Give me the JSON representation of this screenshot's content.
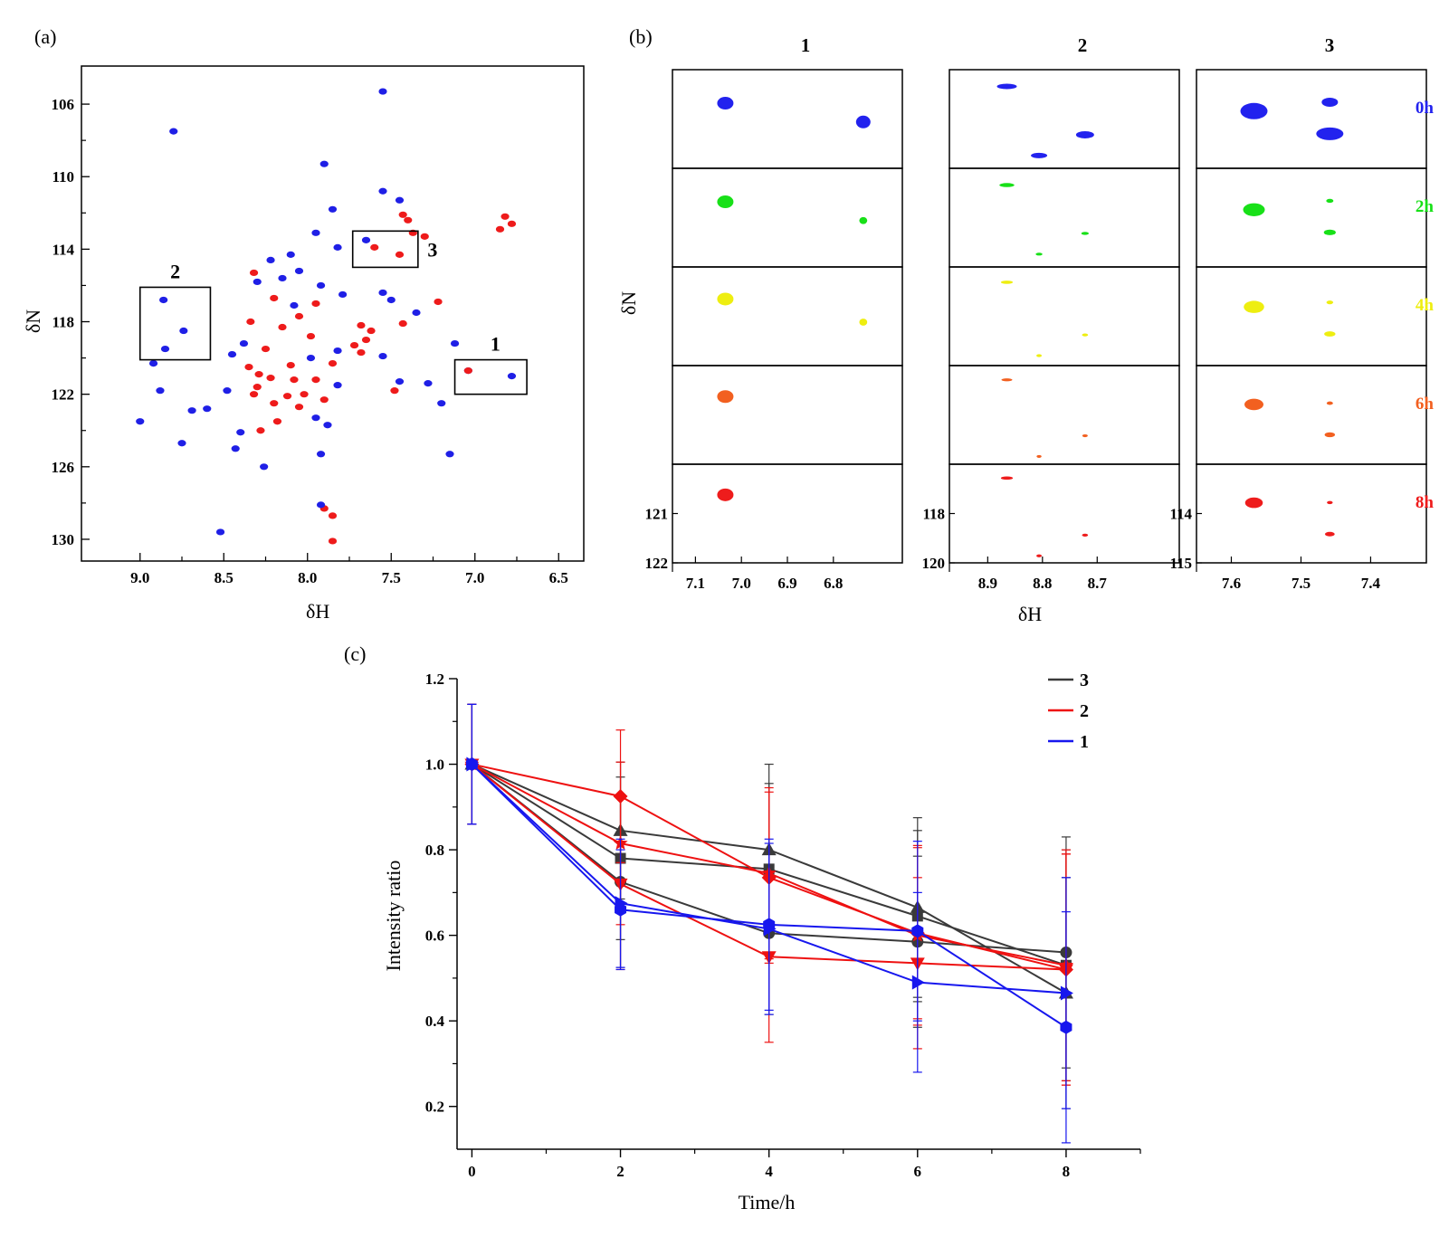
{
  "figure": {
    "panel_labels": [
      "(a)",
      "(b)",
      "(c)"
    ]
  },
  "chart_data": [
    {
      "panel": "(a)",
      "type": "scatter",
      "title": "",
      "xlabel": "δH",
      "ylabel": "δN",
      "xlim": [
        9.35,
        6.35
      ],
      "ylim": [
        131.2,
        103.9
      ],
      "x_ticks": [
        "9.0",
        "8.5",
        "8.0",
        "7.5",
        "7.0",
        "6.5"
      ],
      "y_ticks": [
        "106",
        "110",
        "114",
        "118",
        "122",
        "126",
        "130"
      ],
      "colors": {
        "blue": "#1f1fe6",
        "red": "#ee1b1b"
      },
      "regions": [
        {
          "label": "1",
          "x": [
            7.12,
            6.69
          ],
          "y": [
            120.1,
            122.0
          ]
        },
        {
          "label": "2",
          "x": [
            9.0,
            8.58
          ],
          "y": [
            116.1,
            120.1
          ]
        },
        {
          "label": "3",
          "x": [
            7.73,
            7.34
          ],
          "y": [
            113.0,
            115.0
          ]
        }
      ],
      "peaks": [
        [
          7.55,
          105.3,
          "b"
        ],
        [
          8.8,
          107.5,
          "b"
        ],
        [
          7.9,
          109.3,
          "b"
        ],
        [
          7.55,
          110.8,
          "b"
        ],
        [
          7.45,
          111.3,
          "b"
        ],
        [
          7.43,
          112.1,
          "r"
        ],
        [
          7.85,
          111.8,
          "b"
        ],
        [
          7.4,
          112.4,
          "r"
        ],
        [
          7.37,
          113.1,
          "r"
        ],
        [
          6.82,
          112.2,
          "r"
        ],
        [
          6.78,
          112.6,
          "r"
        ],
        [
          6.85,
          112.9,
          "r"
        ],
        [
          7.95,
          113.1,
          "b"
        ],
        [
          7.82,
          113.9,
          "b"
        ],
        [
          7.6,
          113.9,
          "r"
        ],
        [
          7.45,
          114.3,
          "r"
        ],
        [
          7.65,
          113.5,
          "b"
        ],
        [
          7.3,
          113.3,
          "r"
        ],
        [
          8.1,
          114.3,
          "b"
        ],
        [
          8.22,
          114.6,
          "b"
        ],
        [
          8.32,
          115.3,
          "r"
        ],
        [
          8.3,
          115.8,
          "b"
        ],
        [
          8.05,
          115.2,
          "b"
        ],
        [
          8.15,
          115.6,
          "b"
        ],
        [
          7.92,
          116.0,
          "b"
        ],
        [
          7.79,
          116.5,
          "b"
        ],
        [
          7.55,
          116.4,
          "b"
        ],
        [
          8.2,
          116.7,
          "r"
        ],
        [
          8.08,
          117.1,
          "b"
        ],
        [
          7.95,
          117.0,
          "r"
        ],
        [
          7.5,
          116.8,
          "b"
        ],
        [
          7.22,
          116.9,
          "r"
        ],
        [
          7.35,
          117.5,
          "b"
        ],
        [
          8.05,
          117.7,
          "r"
        ],
        [
          8.34,
          118.0,
          "r"
        ],
        [
          8.15,
          118.3,
          "r"
        ],
        [
          7.68,
          118.2,
          "r"
        ],
        [
          7.62,
          118.5,
          "r"
        ],
        [
          7.43,
          118.1,
          "r"
        ],
        [
          7.98,
          118.8,
          "r"
        ],
        [
          7.65,
          119.0,
          "r"
        ],
        [
          7.72,
          119.3,
          "r"
        ],
        [
          7.12,
          119.2,
          "b"
        ],
        [
          8.38,
          119.2,
          "b"
        ],
        [
          8.25,
          119.5,
          "r"
        ],
        [
          7.82,
          119.6,
          "b"
        ],
        [
          7.55,
          119.9,
          "b"
        ],
        [
          7.68,
          119.7,
          "r"
        ],
        [
          7.85,
          120.3,
          "r"
        ],
        [
          8.35,
          120.5,
          "r"
        ],
        [
          8.29,
          120.9,
          "r"
        ],
        [
          8.22,
          121.1,
          "r"
        ],
        [
          8.08,
          121.2,
          "r"
        ],
        [
          7.95,
          121.2,
          "r"
        ],
        [
          7.82,
          121.5,
          "b"
        ],
        [
          8.3,
          121.6,
          "r"
        ],
        [
          8.32,
          122.0,
          "r"
        ],
        [
          8.12,
          122.1,
          "r"
        ],
        [
          8.02,
          122.0,
          "r"
        ],
        [
          7.9,
          122.3,
          "r"
        ],
        [
          7.45,
          121.3,
          "b"
        ],
        [
          7.48,
          121.8,
          "r"
        ],
        [
          7.28,
          121.4,
          "b"
        ],
        [
          7.2,
          122.5,
          "b"
        ],
        [
          8.48,
          121.8,
          "b"
        ],
        [
          8.6,
          122.8,
          "b"
        ],
        [
          8.2,
          122.5,
          "r"
        ],
        [
          8.05,
          122.7,
          "r"
        ],
        [
          7.95,
          123.3,
          "b"
        ],
        [
          8.18,
          123.5,
          "r"
        ],
        [
          8.28,
          124.0,
          "r"
        ],
        [
          7.88,
          123.7,
          "b"
        ],
        [
          8.4,
          124.1,
          "b"
        ],
        [
          8.92,
          120.3,
          "b"
        ],
        [
          8.88,
          121.8,
          "b"
        ],
        [
          8.69,
          122.9,
          "b"
        ],
        [
          9.0,
          123.5,
          "b"
        ],
        [
          8.75,
          124.7,
          "b"
        ],
        [
          8.43,
          125.0,
          "b"
        ],
        [
          7.92,
          125.3,
          "b"
        ],
        [
          7.15,
          125.3,
          "b"
        ],
        [
          8.26,
          126.0,
          "b"
        ],
        [
          7.9,
          128.3,
          "r"
        ],
        [
          7.85,
          128.7,
          "r"
        ],
        [
          8.52,
          129.6,
          "b"
        ],
        [
          7.85,
          130.1,
          "r"
        ],
        [
          7.92,
          128.1,
          "b"
        ],
        [
          8.1,
          120.4,
          "r"
        ],
        [
          7.98,
          120.0,
          "b"
        ],
        [
          8.45,
          119.8,
          "b"
        ],
        [
          8.86,
          116.8,
          "b"
        ],
        [
          8.74,
          118.5,
          "b"
        ],
        [
          8.85,
          119.5,
          "b"
        ],
        [
          7.04,
          120.7,
          "b"
        ],
        [
          6.78,
          121.0,
          "b"
        ],
        [
          7.04,
          120.7,
          "r"
        ]
      ]
    },
    {
      "panel": "(b)",
      "type": "scatter",
      "title": "",
      "xlabel": "δH",
      "ylabel": "δN",
      "columns": [
        {
          "label": "1",
          "xlim": [
            7.15,
            6.65
          ],
          "x_ticks": [
            "7.1",
            "7.0",
            "6.9",
            "6.8"
          ],
          "ylim": [
            120.0,
            122.0
          ],
          "y_ticks": [
            "121",
            "122"
          ]
        },
        {
          "label": "2",
          "xlim": [
            8.97,
            8.55
          ],
          "x_ticks": [
            "8.9",
            "8.8",
            "8.7"
          ],
          "ylim": [
            116.0,
            120.0
          ],
          "y_ticks": [
            "118",
            "120"
          ]
        },
        {
          "label": "3",
          "xlim": [
            7.65,
            7.32
          ],
          "x_ticks": [
            "7.6",
            "7.5",
            "7.4"
          ],
          "ylim": [
            113.0,
            115.0
          ],
          "y_ticks": [
            "114",
            "115"
          ]
        }
      ],
      "timepoints": [
        {
          "label": "0h",
          "color": "#2222ee"
        },
        {
          "label": "2h",
          "color": "#18e018"
        },
        {
          "label": "4h",
          "color": "#eeee10"
        },
        {
          "label": "6h",
          "color": "#f26020"
        },
        {
          "label": "8h",
          "color": "#ee1c1c"
        }
      ]
    },
    {
      "panel": "(c)",
      "type": "line",
      "title": "",
      "xlabel": "Time/h",
      "ylabel": "Intensity ratio",
      "x": [
        0,
        2,
        4,
        6,
        8
      ],
      "xlim": [
        -0.2,
        9.0
      ],
      "ylim": [
        0.1,
        1.2
      ],
      "x_ticks": [
        "0",
        "2",
        "4",
        "6",
        "8"
      ],
      "y_ticks": [
        "0.2",
        "0.4",
        "0.6",
        "0.8",
        "1.0",
        "1.2"
      ],
      "legend": [
        {
          "name": "3",
          "color": "#3a3a3a"
        },
        {
          "name": "2",
          "color": "#ee1111"
        },
        {
          "name": "1",
          "color": "#1717ee"
        }
      ],
      "legend_position": "top-right",
      "series": [
        {
          "group": "3",
          "color": "#3a3a3a",
          "marker": "circle",
          "values": [
            1.0,
            0.725,
            0.605,
            0.585,
            0.56
          ],
          "err": [
            0.14,
            0.2,
            0.19,
            0.2,
            0.27
          ]
        },
        {
          "group": "3",
          "color": "#3a3a3a",
          "marker": "square",
          "values": [
            1.0,
            0.78,
            0.755,
            0.645,
            0.53
          ],
          "err": [
            0.14,
            0.19,
            0.2,
            0.2,
            0.27
          ]
        },
        {
          "group": "3",
          "color": "#3a3a3a",
          "marker": "triangle",
          "values": [
            1.0,
            0.845,
            0.8,
            0.665,
            0.465
          ],
          "err": [
            0.14,
            0.16,
            0.2,
            0.21,
            0.27
          ]
        },
        {
          "group": "2",
          "color": "#ee1111",
          "marker": "diamond",
          "values": [
            1.0,
            0.925,
            0.735,
            0.605,
            0.52
          ],
          "err": [
            0.14,
            0.155,
            0.2,
            0.2,
            0.27
          ]
        },
        {
          "group": "2",
          "color": "#ee1111",
          "marker": "triangle-down",
          "values": [
            1.0,
            0.72,
            0.55,
            0.535,
            0.52
          ],
          "err": [
            0.14,
            0.2,
            0.2,
            0.2,
            0.27
          ]
        },
        {
          "group": "2",
          "color": "#ee1111",
          "marker": "star",
          "values": [
            1.0,
            0.815,
            0.745,
            0.6,
            0.53
          ],
          "err": [
            0.14,
            0.19,
            0.2,
            0.21,
            0.27
          ]
        },
        {
          "group": "1",
          "color": "#1717ee",
          "marker": "hexagon",
          "values": [
            1.0,
            0.66,
            0.625,
            0.61,
            0.385
          ],
          "err": [
            0.14,
            0.14,
            0.2,
            0.21,
            0.27
          ]
        },
        {
          "group": "1",
          "color": "#1717ee",
          "marker": "triangle-right",
          "values": [
            1.0,
            0.675,
            0.615,
            0.49,
            0.465
          ],
          "err": [
            0.14,
            0.15,
            0.2,
            0.21,
            0.27
          ]
        }
      ]
    }
  ]
}
